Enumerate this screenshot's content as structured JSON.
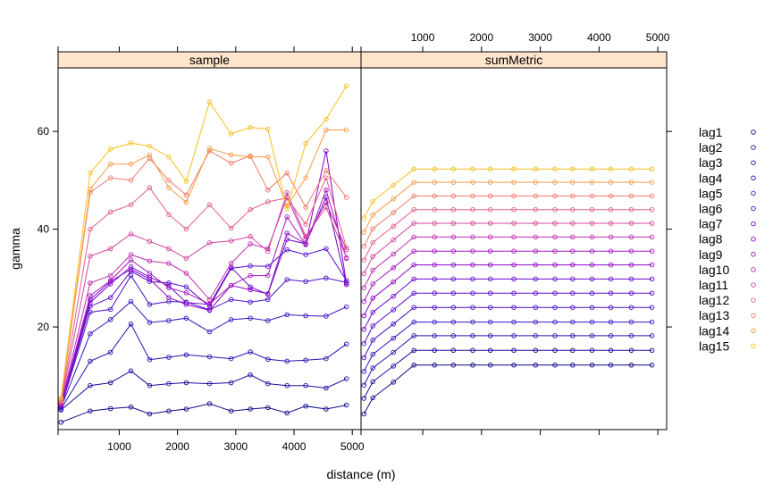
{
  "chart_data": {
    "type": "line",
    "xlabel": "distance (m)",
    "ylabel": "gamma",
    "xlim": [
      -50,
      5150
    ],
    "ylim": [
      -1,
      73
    ],
    "x_ticks": [
      1000,
      2000,
      3000,
      4000,
      5000
    ],
    "y_ticks": [
      20,
      40,
      60
    ],
    "strip_color": "#FFE5CC",
    "panels": [
      {
        "name": "sample",
        "x": [
          0,
          500,
          850,
          1200,
          1520,
          1850,
          2150,
          2550,
          2920,
          3250,
          3550,
          3880,
          4200,
          4550,
          4900
        ],
        "series": [
          {
            "name": "lag1",
            "color": "#0D0887",
            "values": [
              0.5,
              2.8,
              3.3,
              3.6,
              2.2,
              2.8,
              3.2,
              4.3,
              2.8,
              3.2,
              3.5,
              2.4,
              3.8,
              3.2,
              4.0
            ]
          },
          {
            "name": "lag2",
            "color": "#1B0C9B",
            "values": [
              3.0,
              8.0,
              8.6,
              11.0,
              8.0,
              8.4,
              8.6,
              8.4,
              8.6,
              10.2,
              8.4,
              8.0,
              8.0,
              7.5,
              9.4
            ]
          },
          {
            "name": "lag3",
            "color": "#2A0FB0",
            "values": [
              3.2,
              13.0,
              14.8,
              20.6,
              13.3,
              13.8,
              14.3,
              13.9,
              13.5,
              14.9,
              13.4,
              13.0,
              13.2,
              13.5,
              16.5
            ]
          },
          {
            "name": "lag4",
            "color": "#3A11C4",
            "values": [
              3.5,
              18.6,
              21.5,
              25.2,
              20.9,
              21.3,
              21.8,
              19.0,
              21.5,
              21.8,
              21.3,
              22.5,
              22.3,
              22.2,
              24.1
            ]
          },
          {
            "name": "lag5",
            "color": "#4A10C8",
            "values": [
              3.6,
              23.0,
              23.6,
              30.5,
              24.6,
              25.2,
              25.1,
              23.5,
              25.6,
              25.1,
              25.6,
              29.7,
              29.3,
              30.0,
              29.1
            ]
          },
          {
            "name": "lag6",
            "color": "#5A0DCC",
            "values": [
              3.8,
              24.2,
              26.0,
              31.4,
              29.3,
              29.0,
              28.2,
              24.2,
              32.0,
              32.5,
              32.4,
              35.8,
              34.8,
              36.0,
              29.5
            ]
          },
          {
            "name": "lag7",
            "color": "#6D08CE",
            "values": [
              3.9,
              25.0,
              28.8,
              32.3,
              30.2,
              28.4,
              25.0,
              24.6,
              32.2,
              28.2,
              26.7,
              37.9,
              37.0,
              46.5,
              28.7
            ]
          },
          {
            "name": "lag8",
            "color": "#8A05C8",
            "values": [
              4.0,
              25.6,
              29.3,
              31.8,
              29.8,
              26.0,
              24.6,
              23.4,
              28.5,
              27.6,
              26.8,
              39.2,
              37.0,
              56.0,
              28.8
            ]
          },
          {
            "name": "lag9",
            "color": "#A418C0",
            "values": [
              4.2,
              26.4,
              29.5,
              33.7,
              31.0,
              28.0,
              27.0,
              24.7,
              28.5,
              30.5,
              30.5,
              42.5,
              36.8,
              48.0,
              34.0
            ]
          },
          {
            "name": "lag10",
            "color": "#BE2FB0",
            "values": [
              4.4,
              29.0,
              30.5,
              34.8,
              33.5,
              33.0,
              31.0,
              25.6,
              33.0,
              37.0,
              36.0,
              46.5,
              38.0,
              45.5,
              35.8
            ]
          },
          {
            "name": "lag11",
            "color": "#D2459E",
            "values": [
              4.6,
              34.5,
              36.0,
              39.0,
              37.5,
              36.0,
              34.0,
              37.2,
              37.6,
              38.5,
              35.5,
              47.5,
              38.5,
              44.5,
              34.2
            ]
          },
          {
            "name": "lag12",
            "color": "#E35E87",
            "values": [
              4.8,
              40.0,
              43.5,
              45.0,
              48.5,
              43.0,
              40.0,
              45.0,
              40.2,
              44.0,
              45.6,
              46.4,
              41.0,
              50.5,
              36.2
            ]
          },
          {
            "name": "lag13",
            "color": "#F17A6C",
            "values": [
              5.0,
              47.5,
              50.5,
              50.0,
              54.5,
              50.0,
              47.0,
              56.0,
              53.5,
              55.0,
              48.0,
              51.5,
              44.5,
              52.0,
              46.5
            ]
          },
          {
            "name": "lag14",
            "color": "#F89A48",
            "values": [
              5.2,
              48.2,
              53.3,
              53.3,
              55.2,
              48.5,
              45.5,
              56.5,
              55.2,
              54.8,
              54.8,
              44.8,
              50.5,
              60.3,
              60.3
            ]
          },
          {
            "name": "lag15",
            "color": "#F6C01E",
            "values": [
              5.5,
              51.5,
              56.4,
              57.6,
              57.0,
              54.8,
              49.8,
              66.0,
              59.5,
              60.8,
              60.5,
              44.2,
              57.5,
              62.5,
              69.3
            ]
          }
        ]
      },
      {
        "name": "sumMetric",
        "x": [
          0,
          150,
          500,
          850,
          1200,
          1520,
          1850,
          2150,
          2550,
          2920,
          3250,
          3550,
          3880,
          4200,
          4550,
          4900
        ],
        "series": [
          {
            "name": "lag1",
            "values": [
              2.2,
              5.5,
              8.7,
              12.2,
              12.2,
              12.2,
              12.2,
              12.2,
              12.2,
              12.2,
              12.2,
              12.2,
              12.2,
              12.2,
              12.2,
              12.2
            ]
          },
          {
            "name": "lag2",
            "values": [
              5.4,
              8.8,
              12.0,
              15.2,
              15.2,
              15.2,
              15.2,
              15.2,
              15.2,
              15.2,
              15.2,
              15.2,
              15.2,
              15.2,
              15.2,
              15.2
            ]
          },
          {
            "name": "lag3",
            "values": [
              8.1,
              11.6,
              14.8,
              18.2,
              18.2,
              18.2,
              18.2,
              18.2,
              18.2,
              18.2,
              18.2,
              18.2,
              18.2,
              18.2,
              18.2,
              18.2
            ]
          },
          {
            "name": "lag4",
            "values": [
              10.9,
              14.4,
              17.7,
              21.0,
              21.0,
              21.0,
              21.0,
              21.0,
              21.0,
              21.0,
              21.0,
              21.0,
              21.0,
              21.0,
              21.0,
              21.0
            ]
          },
          {
            "name": "lag5",
            "values": [
              13.7,
              17.3,
              20.6,
              24.0,
              24.0,
              24.0,
              24.0,
              24.0,
              24.0,
              24.0,
              24.0,
              24.0,
              24.0,
              24.0,
              24.0,
              24.0
            ]
          },
          {
            "name": "lag6",
            "values": [
              16.6,
              20.2,
              23.5,
              26.9,
              26.9,
              26.9,
              26.9,
              26.9,
              26.9,
              26.9,
              26.9,
              26.9,
              26.9,
              26.9,
              26.9,
              26.9
            ]
          },
          {
            "name": "lag7",
            "values": [
              19.5,
              23.0,
              26.3,
              29.8,
              29.8,
              29.8,
              29.8,
              29.8,
              29.8,
              29.8,
              29.8,
              29.8,
              29.8,
              29.8,
              29.8,
              29.8
            ]
          },
          {
            "name": "lag8",
            "values": [
              22.3,
              25.9,
              29.2,
              32.7,
              32.7,
              32.7,
              32.7,
              32.7,
              32.7,
              32.7,
              32.7,
              32.7,
              32.7,
              32.7,
              32.7,
              32.7
            ]
          },
          {
            "name": "lag9",
            "values": [
              25.2,
              28.8,
              32.1,
              35.5,
              35.5,
              35.5,
              35.5,
              35.5,
              35.5,
              35.5,
              35.5,
              35.5,
              35.5,
              35.5,
              35.5,
              35.5
            ]
          },
          {
            "name": "lag10",
            "values": [
              28.0,
              31.6,
              34.9,
              38.4,
              38.4,
              38.4,
              38.4,
              38.4,
              38.4,
              38.4,
              38.4,
              38.4,
              38.4,
              38.4,
              38.4,
              38.4
            ]
          },
          {
            "name": "lag11",
            "values": [
              30.9,
              34.4,
              37.8,
              41.2,
              41.2,
              41.2,
              41.2,
              41.2,
              41.2,
              41.2,
              41.2,
              41.2,
              41.2,
              41.2,
              41.2,
              41.2
            ]
          },
          {
            "name": "lag12",
            "values": [
              33.7,
              37.3,
              40.6,
              44.0,
              44.0,
              44.0,
              44.0,
              44.0,
              44.0,
              44.0,
              44.0,
              44.0,
              44.0,
              44.0,
              44.0,
              44.0
            ]
          },
          {
            "name": "lag13",
            "values": [
              36.5,
              40.1,
              43.4,
              46.8,
              46.8,
              46.8,
              46.8,
              46.8,
              46.8,
              46.8,
              46.8,
              46.8,
              46.8,
              46.8,
              46.8,
              46.8
            ]
          },
          {
            "name": "lag14",
            "values": [
              39.4,
              42.9,
              46.2,
              49.6,
              49.6,
              49.6,
              49.6,
              49.6,
              49.6,
              49.6,
              49.6,
              49.6,
              49.6,
              49.6,
              49.6,
              49.6
            ]
          },
          {
            "name": "lag15",
            "values": [
              42.3,
              45.7,
              49.0,
              52.3,
              52.3,
              52.3,
              52.3,
              52.3,
              52.3,
              52.3,
              52.3,
              52.3,
              52.3,
              52.3,
              52.3,
              52.3
            ]
          }
        ]
      }
    ],
    "legend": {
      "placement": "right",
      "labels": [
        "lag1",
        "lag2",
        "lag3",
        "lag4",
        "lag5",
        "lag6",
        "lag7",
        "lag8",
        "lag9",
        "lag10",
        "lag11",
        "lag12",
        "lag13",
        "lag14",
        "lag15"
      ]
    },
    "grid": false
  }
}
